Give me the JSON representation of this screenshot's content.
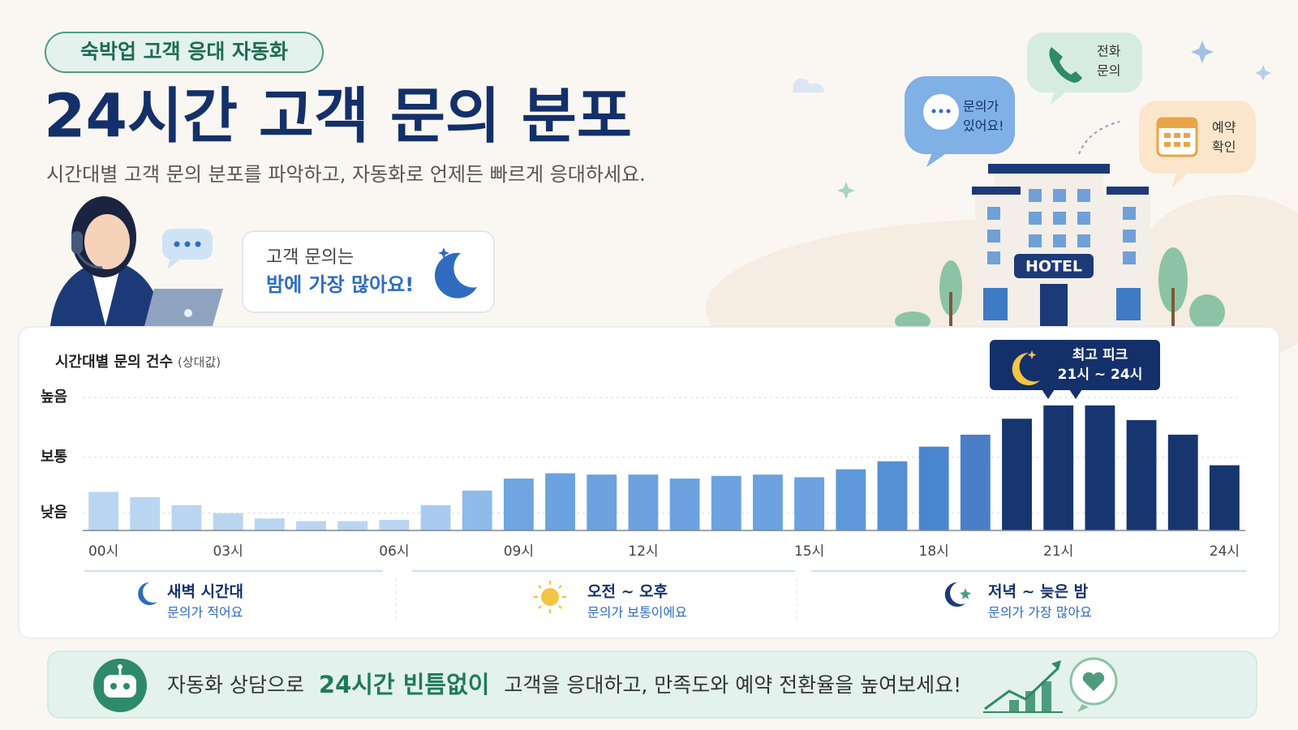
{
  "header": {
    "badge": "숙박업 고객 응대 자동화",
    "title": "24시간 고객 문의 분포",
    "subtitle": "시간대별 고객 문의 분포를 파악하고, 자동화로 언제든 빠르게 응대하세요."
  },
  "callout": {
    "line1": "고객 문의는",
    "line2": "밤에 가장 많아요!"
  },
  "bubbles": {
    "inquiry": [
      "문의가",
      "있어요!"
    ],
    "phone": [
      "전화",
      "문의"
    ],
    "booking": [
      "예약",
      "확인"
    ],
    "hotel": "HOTEL"
  },
  "chart_data": {
    "type": "bar",
    "title": "시간대별 문의 건수",
    "title_note": "(상대값)",
    "categories": [
      "00시",
      null,
      null,
      "03시",
      null,
      null,
      null,
      "06시",
      null,
      null,
      "09시",
      null,
      null,
      "12시",
      null,
      null,
      null,
      "15시",
      null,
      null,
      "18시",
      null,
      null,
      "21시",
      null,
      null,
      null,
      "24시"
    ],
    "values": [
      29,
      25,
      19,
      13,
      9,
      7,
      7,
      8,
      19,
      30,
      39,
      43,
      42,
      42,
      39,
      41,
      42,
      40,
      46,
      52,
      63,
      72,
      84,
      94,
      94,
      83,
      72,
      49
    ],
    "colors": [
      "#b9d5f2",
      "#b9d5f2",
      "#b9d5f2",
      "#b9d5f2",
      "#b9d5f2",
      "#b9d5f2",
      "#b9d5f2",
      "#b9d5f2",
      "#a9cbef",
      "#8ebbea",
      "#6fa5e0",
      "#6ba2df",
      "#6ba2df",
      "#6ba2df",
      "#6ba2df",
      "#6ba2df",
      "#6ba2df",
      "#6ba2df",
      "#5f98da",
      "#5590d5",
      "#4a86cf",
      "#4a7fc8",
      "#17356f",
      "#17356f",
      "#17356f",
      "#17356f",
      "#17356f",
      "#17356f"
    ],
    "ylim": [
      0,
      100
    ],
    "yticks": [
      {
        "value": 13,
        "label": "낮음"
      },
      {
        "value": 55,
        "label": "보통"
      },
      {
        "value": 100,
        "label": "높음"
      }
    ],
    "grid": true,
    "peak_annotation": {
      "title": "최고 피크",
      "range": "21시 ~ 24시"
    }
  },
  "periods": [
    {
      "title": "새벽 시간대",
      "desc": "문의가 적어요"
    },
    {
      "title": "오전 ~ 오후",
      "desc": "문의가 보통이에요"
    },
    {
      "title": "저녁 ~ 늦은 밤",
      "desc": "문의가 가장 많아요"
    }
  ],
  "banner": {
    "lead": "자동화 상담으로",
    "highlight": "24시간 빈틈없이",
    "rest": "고객을 응대하고, 만족도와 예약 전환율을 높여보세요!"
  }
}
